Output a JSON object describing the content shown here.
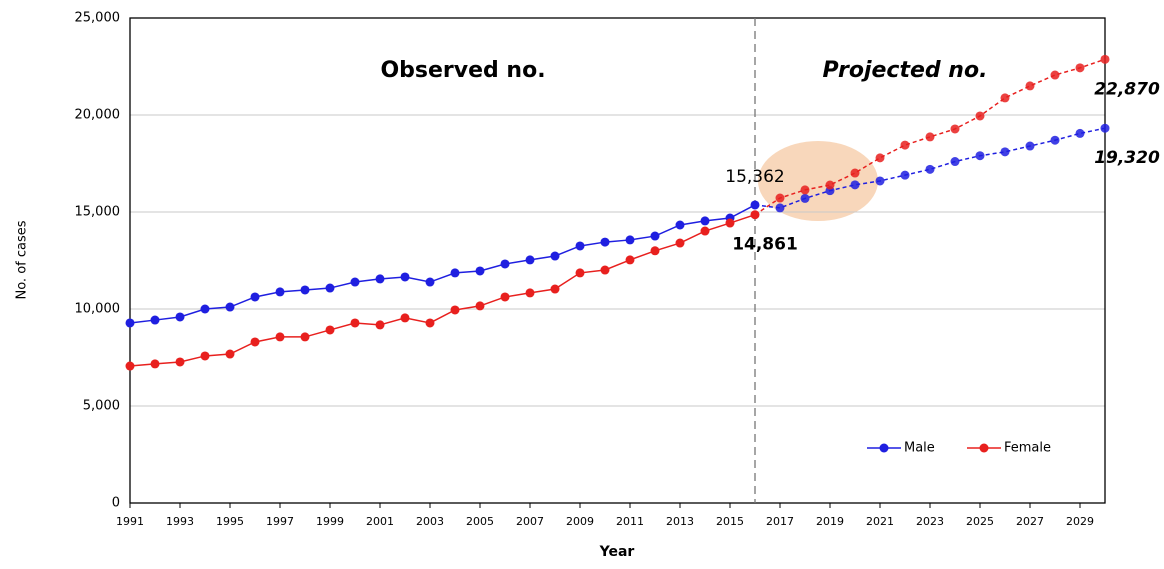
{
  "chart_data": {
    "type": "line",
    "y_label": "No. of cases",
    "x_label": "Year",
    "annotations": [
      "Observed no.",
      "Projected no."
    ],
    "projection_start": 2016,
    "x": [
      1991,
      1992,
      1993,
      1994,
      1995,
      1996,
      1997,
      1998,
      1999,
      2000,
      2001,
      2002,
      2003,
      2004,
      2005,
      2006,
      2007,
      2008,
      2009,
      2010,
      2011,
      2012,
      2013,
      2014,
      2015,
      2016,
      2017,
      2018,
      2019,
      2020,
      2021,
      2022,
      2023,
      2024,
      2025,
      2026,
      2027,
      2028,
      2029,
      2030
    ],
    "xlim": [
      1991,
      2030
    ],
    "xticks": [
      1991,
      1993,
      1995,
      1997,
      1999,
      2001,
      2003,
      2005,
      2007,
      2009,
      2011,
      2013,
      2015,
      2017,
      2019,
      2021,
      2023,
      2025,
      2027,
      2029
    ],
    "ylim": [
      0,
      25000
    ],
    "yticks": [
      0,
      {
        "value": 5000,
        "label": "5,000"
      },
      {
        "value": 10000,
        "label": "10,000"
      },
      {
        "value": 15000,
        "label": "15,000"
      },
      {
        "value": 20000,
        "label": "20,000"
      },
      {
        "value": 25000,
        "label": "25,000"
      }
    ],
    "grid": true,
    "legend": "lower-right",
    "series": [
      {
        "name": "Male",
        "color": "#1f1fe0",
        "values": [
          9280,
          9430,
          9590,
          10000,
          10100,
          10620,
          10880,
          10980,
          11080,
          11390,
          11550,
          11650,
          11390,
          11860,
          11960,
          12320,
          12530,
          12730,
          13250,
          13450,
          13560,
          13760,
          14330,
          14540,
          14690,
          15362,
          15210,
          15700,
          16100,
          16400,
          16600,
          16900,
          17200,
          17600,
          17900,
          18100,
          18400,
          18700,
          19050,
          19320
        ],
        "value_labels": [
          null,
          null,
          null,
          null,
          null,
          null,
          null,
          null,
          null,
          null,
          null,
          null,
          null,
          null,
          null,
          null,
          null,
          null,
          null,
          null,
          null,
          null,
          null,
          null,
          null,
          "15,362",
          null,
          null,
          null,
          null,
          null,
          null,
          null,
          null,
          null,
          null,
          null,
          null,
          null,
          "19,320"
        ]
      },
      {
        "name": "Female",
        "color": "#e8201e",
        "values": [
          7060,
          7170,
          7270,
          7580,
          7680,
          8300,
          8560,
          8560,
          8920,
          9280,
          9180,
          9540,
          9280,
          9950,
          10160,
          10620,
          10830,
          11030,
          11860,
          12010,
          12530,
          13000,
          13400,
          14020,
          14430,
          14861,
          15720,
          16140,
          16390,
          17010,
          17790,
          18450,
          18870,
          19280,
          19950,
          20880,
          21500,
          22060,
          22430,
          22870
        ],
        "value_labels": [
          null,
          null,
          null,
          null,
          null,
          null,
          null,
          null,
          null,
          null,
          null,
          null,
          null,
          null,
          null,
          null,
          null,
          null,
          null,
          null,
          null,
          null,
          null,
          null,
          null,
          "14,861",
          null,
          null,
          null,
          null,
          null,
          null,
          null,
          null,
          null,
          null,
          null,
          null,
          null,
          "22,870"
        ]
      }
    ]
  }
}
